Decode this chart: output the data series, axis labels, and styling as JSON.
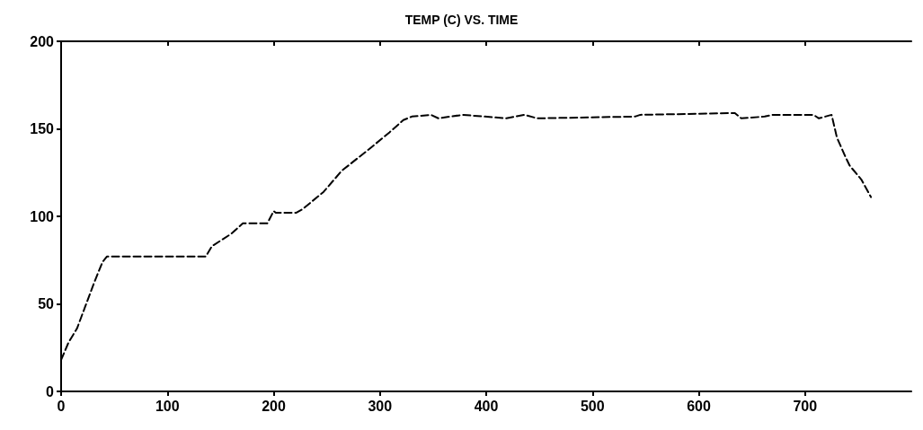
{
  "chart_data": {
    "type": "line",
    "title": "TEMP (C) VS. TIME",
    "x": [
      0,
      7,
      15,
      23,
      31,
      39,
      43,
      136,
      142,
      160,
      171,
      194,
      200,
      202,
      221,
      227,
      247,
      264,
      291,
      309,
      322,
      330,
      348,
      355,
      378,
      419,
      436,
      448,
      540,
      545,
      634,
      640,
      662,
      670,
      708,
      713,
      725,
      730,
      738,
      742,
      753,
      762
    ],
    "series": [
      {
        "color": "#000000",
        "values": [
          18,
          28,
          36,
          49,
          62,
          74,
          77,
          77,
          83,
          90,
          96,
          96,
          103,
          102,
          102,
          104,
          114,
          126,
          139,
          148,
          155,
          157,
          158,
          156,
          158,
          156,
          158,
          156,
          157,
          158,
          159,
          156,
          157,
          158,
          158,
          156,
          158,
          145,
          134,
          129,
          121,
          111
        ]
      }
    ],
    "xlim": [
      0,
      800
    ],
    "xticks": [
      0,
      100,
      200,
      300,
      400,
      500,
      600,
      700
    ],
    "ylim": [
      0,
      200
    ],
    "yticks": [
      0,
      50,
      100,
      150,
      200
    ],
    "grid": false,
    "marker": "none",
    "line_style": "dashed"
  }
}
